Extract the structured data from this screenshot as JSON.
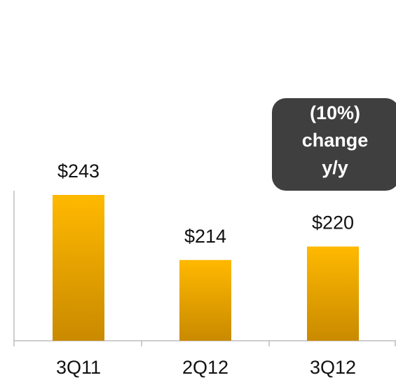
{
  "chart_data": {
    "type": "bar",
    "categories": [
      "3Q11",
      "2Q12",
      "3Q12"
    ],
    "values": [
      243,
      214,
      220
    ],
    "value_labels": [
      "$243",
      "$214",
      "$220"
    ],
    "ylim": [
      178,
      250
    ],
    "annotation": [
      "(10%)",
      "change",
      "y/y"
    ]
  }
}
